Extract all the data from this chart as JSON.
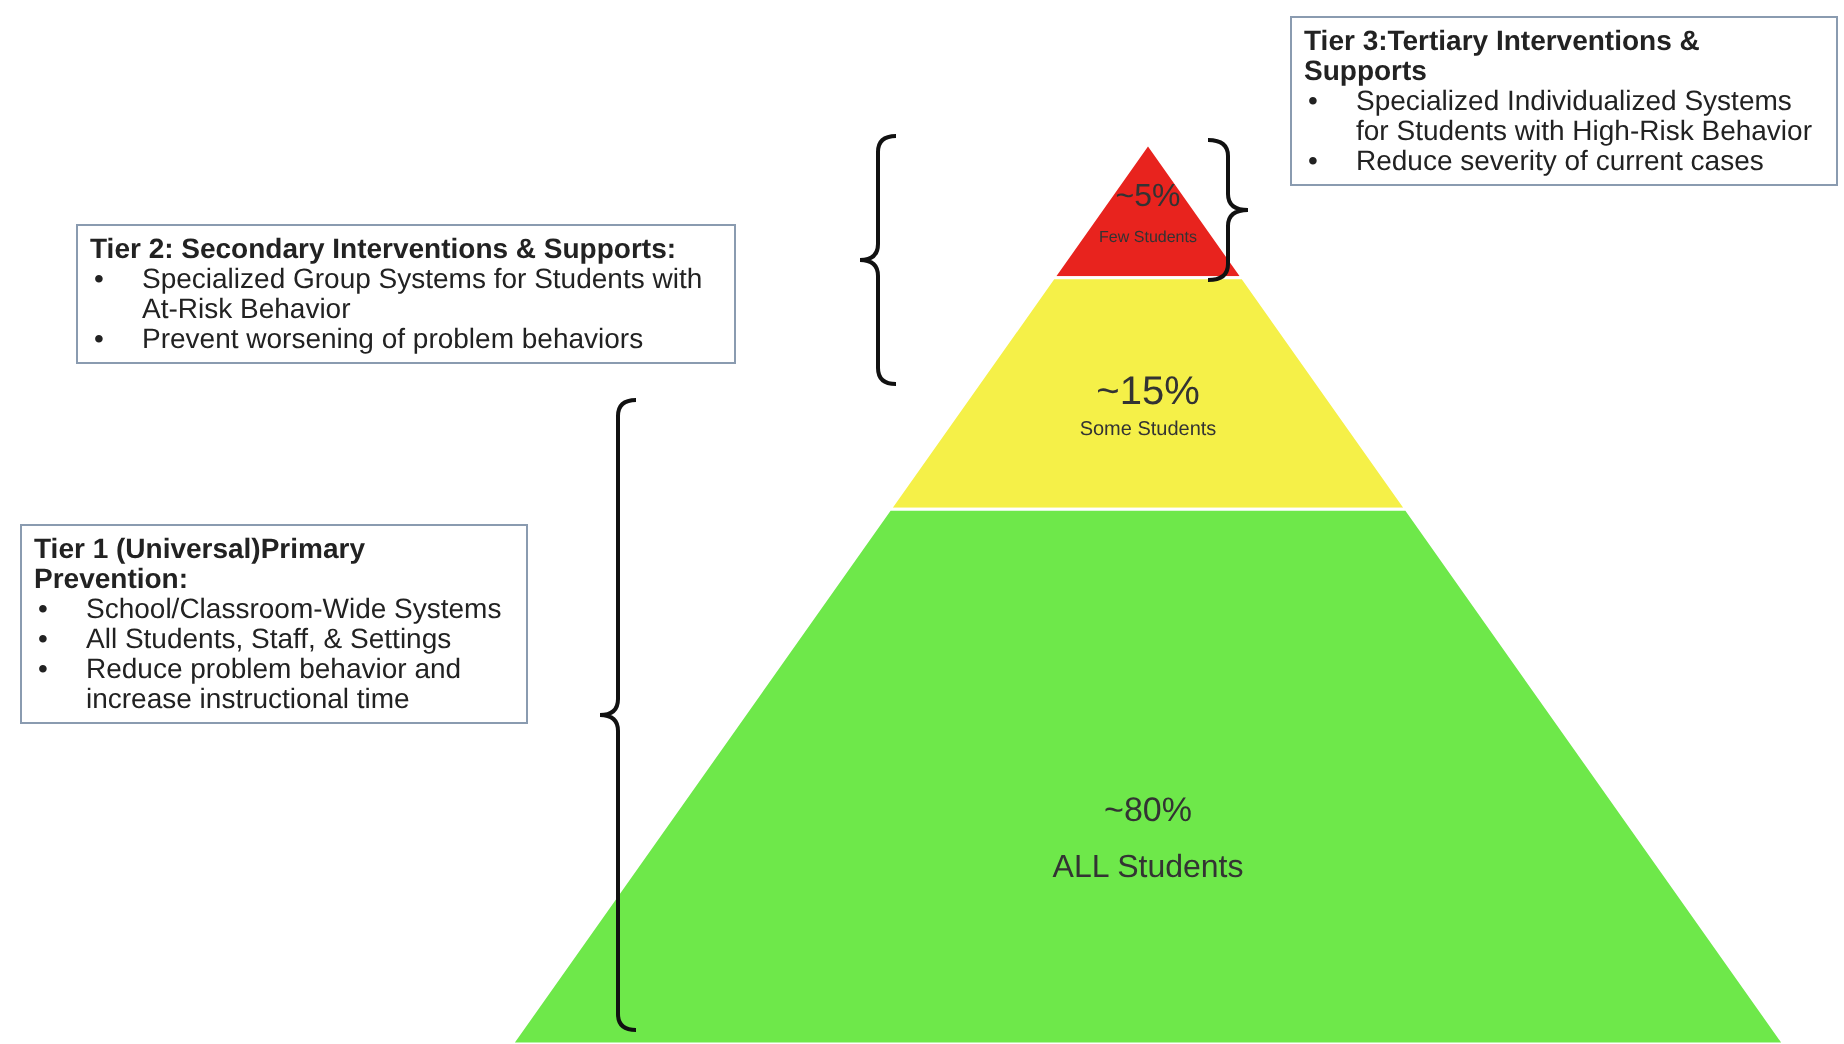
{
  "chart_data": {
    "type": "other",
    "categories": [
      "Few Students",
      "Some Students",
      "ALL Students"
    ],
    "values": [
      5,
      15,
      80
    ],
    "value_labels": [
      "~5%",
      "~15%",
      "~80%"
    ],
    "colors": [
      "#e8231e",
      "#f5f048",
      "#6ee84a"
    ],
    "annotations": [
      "Tier 3:Tertiary Interventions & Supports\n•\tSpecialized Individualized Systems for Students with High-Risk Behavior\n•\tReduce severity of current cases",
      "Tier 2: Secondary Interventions & Supports:\n•\tSpecialized Group Systems for Students with At-Risk Behavior\n•\tPrevent worsening of problem behaviors",
      "Tier 1 (Universal)Primary Prevention:\n•\tSchool/Classroom-Wide Systems\n•\tAll Students, Staff, & Settings\n•\tReduce problem behavior and increase instructional time"
    ]
  }
}
